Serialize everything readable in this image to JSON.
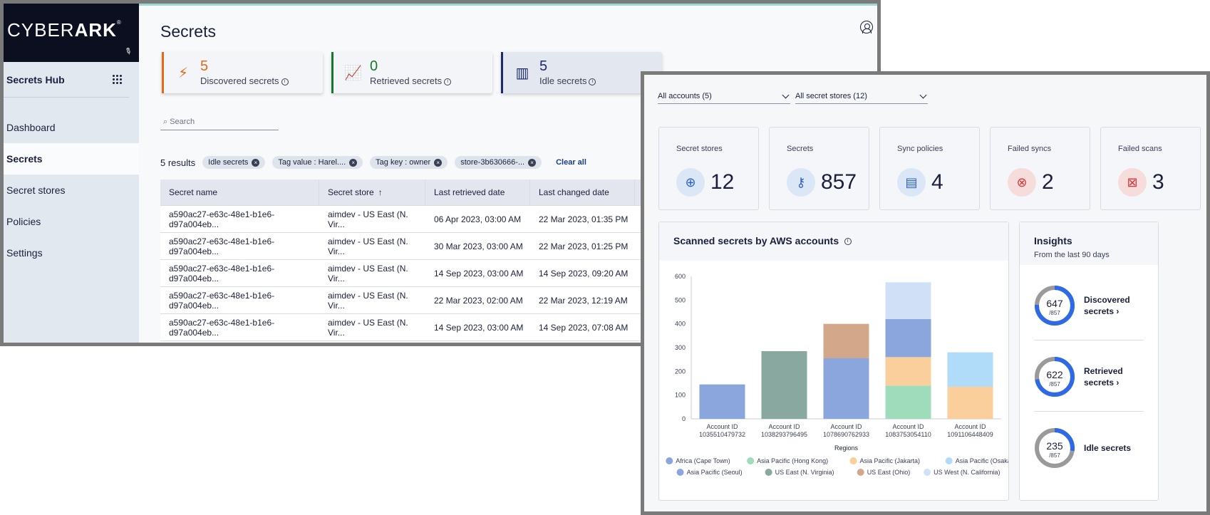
{
  "back": {
    "logo": {
      "light": "CYBER",
      "bold": "ARK",
      "mark": "®"
    },
    "sidebar": {
      "hub_title": "Secrets Hub",
      "items": [
        {
          "label": "Dashboard",
          "active": false
        },
        {
          "label": "Secrets",
          "active": true
        },
        {
          "label": "Secret stores",
          "active": false
        },
        {
          "label": "Policies",
          "active": false
        },
        {
          "label": "Settings",
          "active": false
        }
      ]
    },
    "page_title": "Secrets",
    "stats": [
      {
        "value": "5",
        "label": "Discovered secrets",
        "color": "#e06a17",
        "icon": "lightning-icon"
      },
      {
        "value": "0",
        "label": "Retrieved secrets",
        "color": "#18762f",
        "icon": "chart-up-icon"
      },
      {
        "value": "5",
        "label": "Idle secrets",
        "color": "#1c2a6b",
        "icon": "idle-chart-icon"
      }
    ],
    "search_placeholder": "Search",
    "results": "5 results",
    "chips": [
      "Idle secrets",
      "Tag value : Harel....",
      "Tag key : owner",
      "store-3b630666-..."
    ],
    "clear_all": "Clear all",
    "table": {
      "headers": [
        "Secret name",
        "Secret store",
        "Last retrieved date",
        "Last changed date",
        ""
      ],
      "sort_indicator": "↑",
      "rows": [
        [
          "a590ac27-e63c-48e1-b1e6-d97a004eb...",
          "aimdev - US East (N. Vir...",
          "06 Apr 2023, 03:00 AM",
          "22 Mar 2023, 01:35 PM"
        ],
        [
          "a590ac27-e63c-48e1-b1e6-d97a004eb...",
          "aimdev - US East (N. Vir...",
          "30 Mar 2023, 03:00 AM",
          "22 Mar 2023, 01:25 PM"
        ],
        [
          "a590ac27-e63c-48e1-b1e6-d97a004eb...",
          "aimdev - US East (N. Vir...",
          "14 Sep 2023, 03:00 AM",
          "14 Sep 2023, 09:20 AM"
        ],
        [
          "a590ac27-e63c-48e1-b1e6-d97a004eb...",
          "aimdev - US East (N. Vir...",
          "22 Mar 2023, 02:00 AM",
          "22 Mar 2023, 12:19 AM"
        ],
        [
          "a590ac27-e63c-48e1-b1e6-d97a004eb...",
          "aimdev - US East (N. Vir...",
          "14 Sep 2023, 03:00 AM",
          "14 Sep 2023, 07:08 AM"
        ]
      ]
    }
  },
  "front": {
    "filters": {
      "accounts": "All accounts (5)",
      "stores": "All secret stores (12)"
    },
    "kpis": [
      {
        "label": "Secret stores",
        "value": "12",
        "icon": "target-icon",
        "bg": "#dbe7f7",
        "fg": "#2e64c5"
      },
      {
        "label": "Secrets",
        "value": "857",
        "icon": "key-icon",
        "bg": "#dbe7f7",
        "fg": "#2e64c5"
      },
      {
        "label": "Sync policies",
        "value": "4",
        "icon": "policy-icon",
        "bg": "#dbe7f7",
        "fg": "#2e64c5"
      },
      {
        "label": "Failed syncs",
        "value": "2",
        "icon": "failed-sync-icon",
        "bg": "#f7dcdc",
        "fg": "#d23a3a"
      },
      {
        "label": "Failed scans",
        "value": "3",
        "icon": "failed-scan-icon",
        "bg": "#f7dcdc",
        "fg": "#d23a3a"
      }
    ],
    "chart_title": "Scanned secrets by AWS accounts",
    "insights": {
      "title": "Insights",
      "subtitle": "From the last 90 days",
      "items": [
        {
          "value": "647",
          "total": "/857",
          "label1": "Discovered",
          "label2": "secrets",
          "fraction": 0.755
        },
        {
          "value": "622",
          "total": "/857",
          "label1": "Retrieved",
          "label2": "secrets",
          "fraction": 0.726
        },
        {
          "value": "235",
          "total": "/857",
          "label1": "Idle secrets",
          "label2": "",
          "fraction": 0.274
        }
      ]
    }
  },
  "chart_data": {
    "type": "bar",
    "stacked": true,
    "title": "Scanned secrets by AWS accounts",
    "xlabel": "Regions",
    "ylabel": "",
    "ylim": [
      0,
      600
    ],
    "yticks": [
      0,
      100,
      200,
      300,
      400,
      500,
      600
    ],
    "categories": [
      [
        "Account ID",
        "1035510479732"
      ],
      [
        "Account ID",
        "1038293796495"
      ],
      [
        "Account ID",
        "1078690762933"
      ],
      [
        "Account ID",
        "1083753054110"
      ],
      [
        "Account ID",
        "1091106448409"
      ]
    ],
    "series": [
      {
        "name": "Africa (Cape Town)",
        "color": "#8aa6dc",
        "values": [
          145,
          0,
          0,
          0,
          0
        ]
      },
      {
        "name": "Asia Pacific (Hong Kong)",
        "color": "#9edcbc",
        "values": [
          0,
          0,
          0,
          140,
          0
        ]
      },
      {
        "name": "Asia Pacific (Jakarta)",
        "color": "#fbcf9c",
        "values": [
          0,
          0,
          0,
          120,
          135
        ]
      },
      {
        "name": "Asia Pacific (Osaka)",
        "color": "#b0dcf9",
        "values": [
          0,
          0,
          0,
          0,
          145
        ]
      },
      {
        "name": "Asia Pacific (Seoul)",
        "color": "#8aa6dc",
        "values": [
          0,
          0,
          255,
          160,
          0
        ]
      },
      {
        "name": "US East (N. Virginia)",
        "color": "#89a8a0",
        "values": [
          0,
          285,
          0,
          0,
          0
        ]
      },
      {
        "name": "US East (Ohio)",
        "color": "#d3a88a",
        "values": [
          0,
          0,
          145,
          0,
          0
        ]
      },
      {
        "name": "US West (N. California)",
        "color": "#cfe0f7",
        "values": [
          0,
          0,
          0,
          155,
          0
        ]
      }
    ],
    "legend_position": "bottom"
  }
}
